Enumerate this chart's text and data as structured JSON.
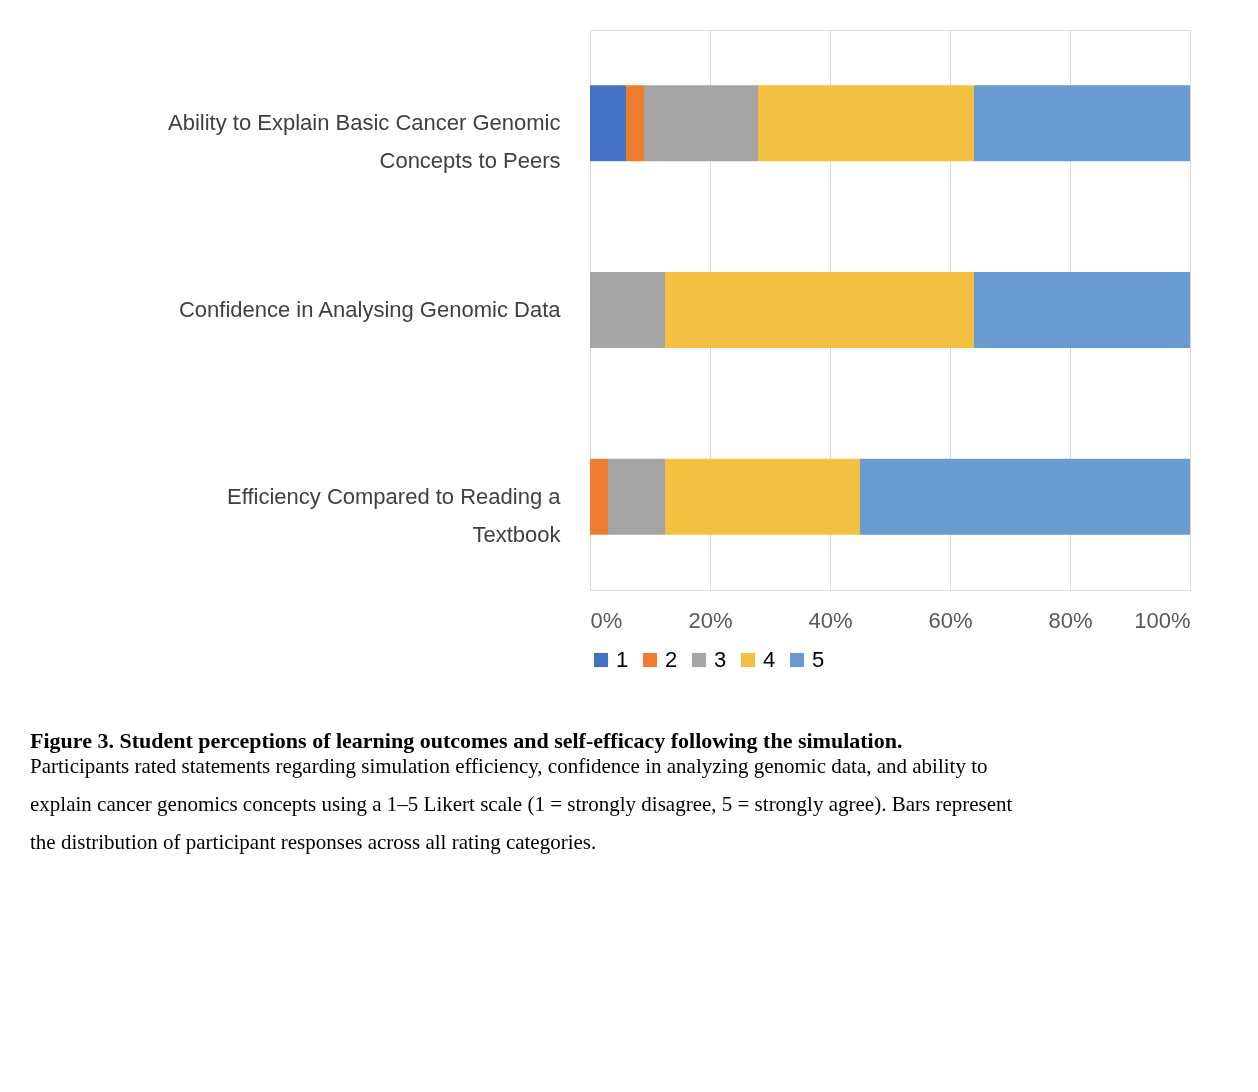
{
  "chart_data": {
    "type": "bar",
    "orientation": "horizontal",
    "stacked": true,
    "categories": [
      "Ability to Explain Basic Cancer Genomic Concepts to Peers",
      "Confidence in Analysing Genomic Data",
      "Efficiency Compared to Reading a Textbook"
    ],
    "series": [
      {
        "name": "1",
        "color": "#4472c4",
        "values": [
          6,
          0,
          0
        ]
      },
      {
        "name": "2",
        "color": "#ed7d31",
        "values": [
          3,
          0,
          3
        ]
      },
      {
        "name": "3",
        "color": "#a5a5a5",
        "values": [
          19,
          12.5,
          9.5
        ]
      },
      {
        "name": "4",
        "color": "#f4c042",
        "values": [
          36,
          51.5,
          32.5
        ]
      },
      {
        "name": "5",
        "color": "#6a9bd0",
        "values": [
          36,
          36,
          55
        ]
      }
    ],
    "xlim": [
      0,
      100
    ],
    "xticks": [
      {
        "value": 0,
        "label": "0%"
      },
      {
        "value": 20,
        "label": "20%"
      },
      {
        "value": 40,
        "label": "40%"
      },
      {
        "value": 60,
        "label": "60%"
      },
      {
        "value": 80,
        "label": "80%"
      },
      {
        "value": 100,
        "label": "100%"
      }
    ],
    "grid": "x",
    "legend": "bottom",
    "annotations": [
      "Figure 3. Student perceptions of learning outcomes and self-efficacy following the simulation.",
      "Participants rated statements regarding simulation efficiency, confidence in analyzing genomic data, and ability to explain cancer genomics concepts using a 1–5 Likert scale (1 = strongly disagree, 5 = strongly agree). Bars represent the distribution of participant responses across all rating categories."
    ]
  }
}
